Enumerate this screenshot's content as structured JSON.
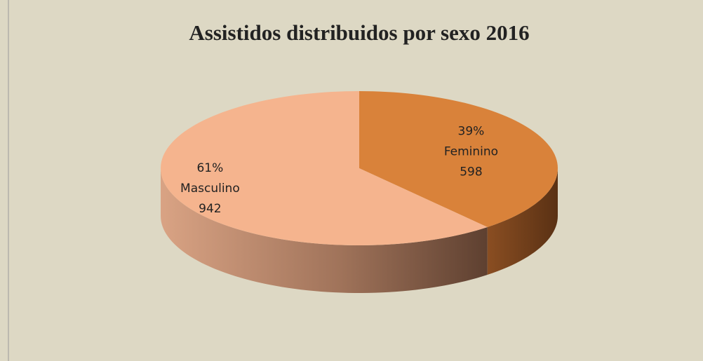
{
  "chart_data": {
    "type": "pie",
    "title": "Assistidos distribuidos por sexo 2016",
    "categories": [
      "Feminino",
      "Masculino"
    ],
    "values": [
      598,
      942
    ],
    "percent_labels": [
      "39%",
      "61%"
    ],
    "colors": [
      "#d9823a",
      "#f5b48e"
    ]
  }
}
